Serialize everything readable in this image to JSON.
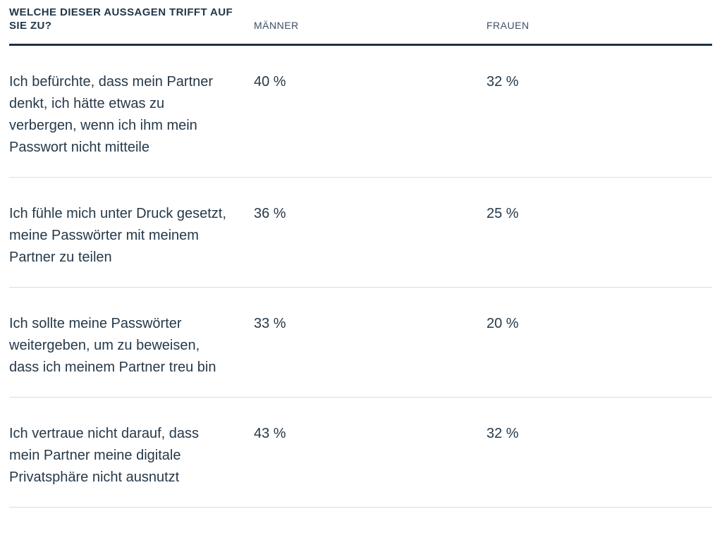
{
  "table": {
    "header": {
      "question": "Welche dieser Aussagen trifft auf Sie zu?",
      "col_maenner": "Männer",
      "col_frauen": "Frauen"
    },
    "rows": [
      {
        "statement": "Ich befürchte, dass mein Partner denkt, ich hätte etwas zu verbergen, wenn ich ihm mein Passwort nicht mitteile",
        "maenner": "40 %",
        "frauen": "32 %"
      },
      {
        "statement": "Ich fühle mich unter Druck gesetzt, meine Passwörter mit meinem Partner zu teilen",
        "maenner": "36 %",
        "frauen": "25 %"
      },
      {
        "statement": "Ich sollte meine Passwörter weitergeben, um zu beweisen, dass ich meinem Partner treu bin",
        "maenner": "33 %",
        "frauen": "20 %"
      },
      {
        "statement": "Ich vertraue nicht darauf, dass mein Partner meine digitale Privatsphäre nicht ausnutzt",
        "maenner": "43 %",
        "frauen": "32 %"
      }
    ]
  },
  "colors": {
    "text_primary": "#263949",
    "column_label": "#3e4f61",
    "header_rule": "#1f3040",
    "row_divider": "#d9dce0",
    "background": "#ffffff"
  },
  "chart_data": {
    "type": "table",
    "title": "WELCHE DIESER AUSSAGEN TRIFFT AUF SIE ZU?",
    "columns": [
      "MÄNNER",
      "FRAUEN"
    ],
    "categories": [
      "Ich befürchte, dass mein Partner denkt, ich hätte etwas zu verbergen, wenn ich ihm mein Passwort nicht mitteile",
      "Ich fühle mich unter Druck gesetzt, meine Passwörter mit meinem Partner zu teilen",
      "Ich sollte meine Passwörter weitergeben, um zu beweisen, dass ich meinem Partner treu bin",
      "Ich vertraue nicht darauf, dass mein Partner meine digitale Privatsphäre nicht ausnutzt"
    ],
    "series": [
      {
        "name": "Männer",
        "values": [
          40,
          36,
          33,
          43
        ],
        "unit": "%"
      },
      {
        "name": "Frauen",
        "values": [
          32,
          25,
          20,
          32
        ],
        "unit": "%"
      }
    ]
  }
}
